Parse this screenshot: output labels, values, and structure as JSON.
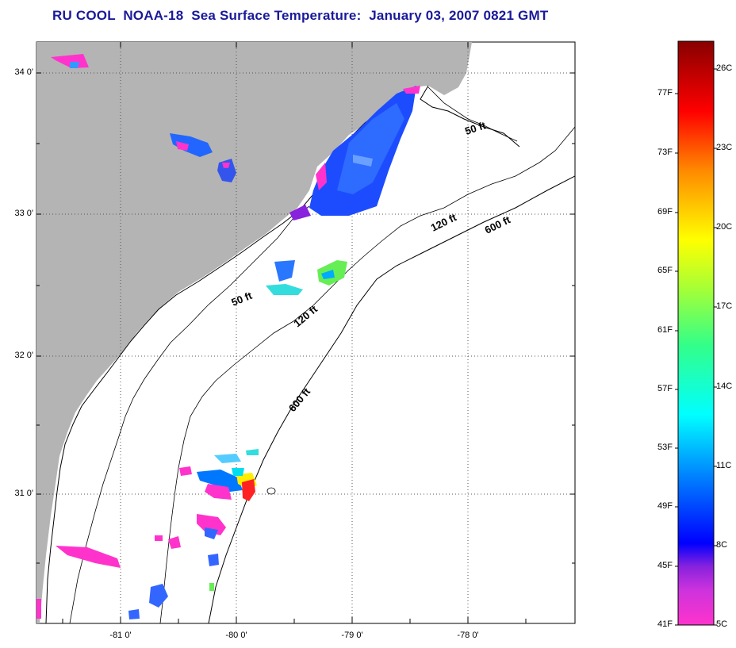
{
  "title": "RU COOL  NOAA-18  Sea Surface Temperature:  January 03, 2007 0821 GMT",
  "map": {
    "lat_labels": [
      "34 0'",
      "33 0'",
      "32 0'",
      "31 0'"
    ],
    "lon_labels": [
      "-81 0'",
      "-80 0'",
      "-79 0'",
      "-78 0'"
    ],
    "depth_contours": [
      "50 ft",
      "120 ft",
      "600 ft",
      "50 ft",
      "120 ft",
      "600 ft"
    ],
    "colors": {
      "land": "#b4b4b4",
      "ocean": "#ffffff",
      "grid": "#555555"
    }
  },
  "colorbar": {
    "fahrenheit_labels": [
      "77F",
      "73F",
      "69F",
      "65F",
      "61F",
      "57F",
      "53F",
      "49F",
      "45F",
      "41F"
    ],
    "celsius_labels": [
      "26C",
      "23C",
      "20C",
      "17C",
      "14C",
      "11C",
      "8C",
      "5C"
    ],
    "range_celsius": [
      5,
      27
    ],
    "colors": [
      "#ff33cc",
      "#8822dd",
      "#0000ff",
      "#00aaff",
      "#00ffff",
      "#55ff55",
      "#ffff00",
      "#ff9900",
      "#ff0000",
      "#880000"
    ]
  }
}
